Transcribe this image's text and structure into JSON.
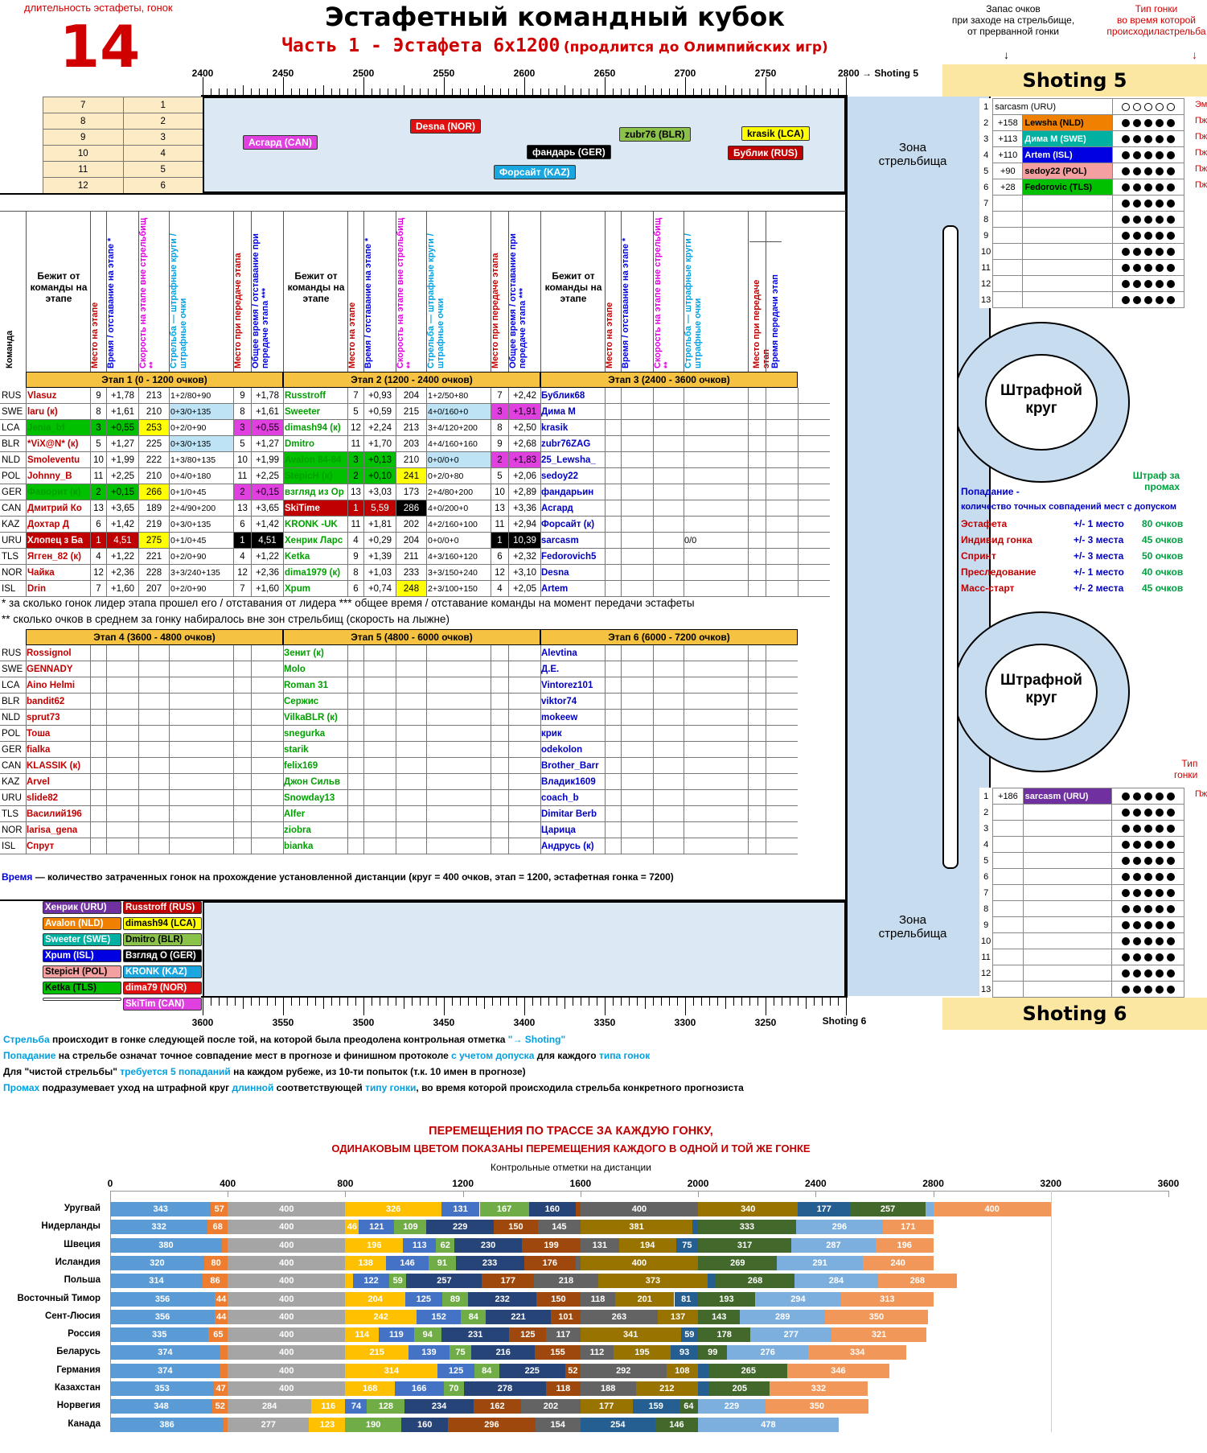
{
  "header": {
    "duration_label": "длительность эстафеты, гонок",
    "duration_value": "14",
    "title": "Эстафетный командный кубок",
    "subtitle": "Часть 1 - Эстафета 6х1200",
    "subtitle_note": "(продлится до Олимпийских игр)",
    "reserve_label": "Запас очков\nпри заходе на стрельбище,\nот прерванной гонки",
    "race_type_label": "Тип гонки\nво время которой\nпроисходиластрельба",
    "arrow": "↓"
  },
  "scale_top": {
    "ticks": [
      "2400",
      "2450",
      "2500",
      "2550",
      "2600",
      "2650",
      "2700",
      "2750",
      "2800 → Shoting 5"
    ],
    "shooting_label": "Shoting 5",
    "zone_label": "Зона\nстрельбища"
  },
  "scale_bottom": {
    "ticks": [
      "3600",
      "3550",
      "3500",
      "3450",
      "3400",
      "3350",
      "3300",
      "3250",
      "Shoting 6"
    ],
    "shooting_label": "Shoting 6",
    "zone_label": "Зона\nстрельбища"
  },
  "side_scale": [
    "Shoting 5",
    "2850",
    "2900",
    "2950",
    "3000",
    "3050",
    "3100",
    "3150",
    "3200 → Shoting 6"
  ],
  "race_counter": {
    "left": [
      "7",
      "8",
      "9",
      "10",
      "11",
      "12",
      "13"
    ],
    "right": [
      "1",
      "2",
      "3",
      "4",
      "5",
      "6",
      ""
    ]
  },
  "track_top_tags": [
    {
      "text": "Асгард (CAN)",
      "bg": "#e040e0",
      "fg": "#ffffff"
    },
    {
      "text": "Desna (NOR)",
      "bg": "#e01010",
      "fg": "#ffffff"
    },
    {
      "text": "фандарь (GER)",
      "bg": "#000000",
      "fg": "#ffffff"
    },
    {
      "text": "Форсайт (KAZ)",
      "bg": "#1aa7e0",
      "fg": "#ffffff"
    },
    {
      "text": "zubr76 (BLR)",
      "bg": "#8bc34a",
      "fg": "#000000"
    },
    {
      "text": "krasik (LCA)",
      "bg": "#ffff00",
      "fg": "#000000"
    },
    {
      "text": "Бублик (RUS)",
      "bg": "#c00000",
      "fg": "#ffffff"
    }
  ],
  "track_bottom_tags": [
    {
      "text": "Хенрик (URU)",
      "bg": "#7030a0",
      "fg": "#ffffff"
    },
    {
      "text": "Russtroff (RUS)",
      "bg": "#c00000",
      "fg": "#ffffff"
    },
    {
      "text": "Avalon (NLD)",
      "bg": "#f08000",
      "fg": "#ffffff"
    },
    {
      "text": "dimash94 (LCA)",
      "bg": "#ffff00",
      "fg": "#000000"
    },
    {
      "text": "Sweeter (SWE)",
      "bg": "#00b0a0",
      "fg": "#ffffff"
    },
    {
      "text": "Dmitro (BLR)",
      "bg": "#8bc34a",
      "fg": "#000000"
    },
    {
      "text": "Хрum (ISL)",
      "bg": "#0000e0",
      "fg": "#ffffff"
    },
    {
      "text": "Взгляд О (GER)",
      "bg": "#000000",
      "fg": "#ffffff"
    },
    {
      "text": "StepicH (POL)",
      "bg": "#f4a0a0",
      "fg": "#000000"
    },
    {
      "text": "KRONK (KAZ)",
      "bg": "#1aa7e0",
      "fg": "#ffffff"
    },
    {
      "text": "Ketka (TLS)",
      "bg": "#00c000",
      "fg": "#000000"
    },
    {
      "text": "dima79 (NOR)",
      "bg": "#e01010",
      "fg": "#ffffff"
    },
    {
      "text": "",
      "bg": "#ffffff",
      "fg": "#000000"
    },
    {
      "text": "SkiTim (CAN)",
      "bg": "#e040e0",
      "fg": "#ffffff"
    }
  ],
  "table_headers": {
    "team": "Команда",
    "runner": "Бежит от команды на этапе",
    "place": "Место на этапе",
    "time": "Время / отставание на этапе *",
    "speed": "Скорость на этапе вне стрельбищ **",
    "shooting": "Стрельба — штрафные круги / штрафные очки",
    "place_handover": "Место при передаче этапа",
    "total_time": "Общее время / отставание при передаче этапа ***",
    "place_handover2": "Место при передаче этап",
    "time2": "Время передачи этап"
  },
  "stages_top": [
    "Этап 1  (0 - 1200 очков)",
    "Этап 2  (1200 - 2400 очков)",
    "Этап 3  (2400 - 3600 очков)"
  ],
  "stages_bottom": [
    "Этап 4  (3600 - 4800 очков)",
    "Этап 5  (4800 - 6000 очков)",
    "Этап 6  (6000 - 7200 очков)"
  ],
  "countries": [
    "RUS",
    "SWE",
    "LCA",
    "BLR",
    "NLD",
    "POL",
    "GER",
    "CAN",
    "KAZ",
    "URU",
    "TLS",
    "NOR",
    "ISL"
  ],
  "stage1": [
    [
      "Vlasuz",
      "9",
      "+1,78",
      "213",
      "1+2/80+90",
      "9",
      "+1,78"
    ],
    [
      "laru (к)",
      "8",
      "+1,61",
      "210",
      "0+3/0+135",
      "8",
      "+1,61"
    ],
    [
      "Jenia_bf",
      "3",
      "+0,55",
      "253",
      "0+2/0+90",
      "3",
      "+0,55"
    ],
    [
      "*ViX@N* (к)",
      "5",
      "+1,27",
      "225",
      "0+3/0+135",
      "5",
      "+1,27"
    ],
    [
      "Smoleventu",
      "10",
      "+1,99",
      "222",
      "1+3/80+135",
      "10",
      "+1,99"
    ],
    [
      "Johnny_B",
      "11",
      "+2,25",
      "210",
      "0+4/0+180",
      "11",
      "+2,25"
    ],
    [
      "Фаворит (к)",
      "2",
      "+0,15",
      "266",
      "0+1/0+45",
      "2",
      "+0,15"
    ],
    [
      "Дмитрий Ко",
      "13",
      "+3,65",
      "189",
      "2+4/90+200",
      "13",
      "+3,65"
    ],
    [
      "Дохтар Д",
      "6",
      "+1,42",
      "219",
      "0+3/0+135",
      "6",
      "+1,42"
    ],
    [
      "Хлопец з Ба",
      "1",
      "4,51",
      "275",
      "0+1/0+45",
      "1",
      "4,51"
    ],
    [
      "Ягген_82 (к)",
      "4",
      "+1,22",
      "221",
      "0+2/0+90",
      "4",
      "+1,22"
    ],
    [
      "Чайка",
      "12",
      "+2,36",
      "228",
      "3+3/240+135",
      "12",
      "+2,36"
    ],
    [
      "Drin",
      "7",
      "+1,60",
      "207",
      "0+2/0+90",
      "7",
      "+1,60"
    ]
  ],
  "stage2": [
    [
      "Russtroff",
      "7",
      "+0,93",
      "204",
      "1+2/50+80",
      "7",
      "+2,42"
    ],
    [
      "Sweeter",
      "5",
      "+0,59",
      "215",
      "4+0/160+0",
      "3",
      "+1,91"
    ],
    [
      "dimash94 (к)",
      "12",
      "+2,24",
      "213",
      "3+4/120+200",
      "8",
      "+2,50"
    ],
    [
      "Dmitro",
      "11",
      "+1,70",
      "203",
      "4+4/160+160",
      "9",
      "+2,68"
    ],
    [
      "Avalon 84-84",
      "3",
      "+0,13",
      "210",
      "0+0/0+0",
      "2",
      "+1,83"
    ],
    [
      "StepicH (к)",
      "2",
      "+0,10",
      "241",
      "0+2/0+80",
      "5",
      "+2,06"
    ],
    [
      "взгляд из Ор",
      "13",
      "+3,03",
      "173",
      "2+4/80+200",
      "10",
      "+2,89"
    ],
    [
      "SkiTime",
      "1",
      "5,59",
      "286",
      "4+0/200+0",
      "13",
      "+3,36"
    ],
    [
      "KRONK -UK",
      "11",
      "+1,81",
      "202",
      "4+2/160+100",
      "11",
      "+2,94"
    ],
    [
      "Хенрик Ларс",
      "4",
      "+0,29",
      "204",
      "0+0/0+0",
      "1",
      "10,39"
    ],
    [
      "Ketka",
      "9",
      "+1,39",
      "211",
      "4+3/160+120",
      "6",
      "+2,32"
    ],
    [
      "dima1979 (к)",
      "8",
      "+1,03",
      "233",
      "3+3/150+240",
      "12",
      "+3,10"
    ],
    [
      "Xpum",
      "6",
      "+0,74",
      "248",
      "2+3/100+150",
      "4",
      "+2,05"
    ]
  ],
  "stage3": [
    "Бублик68",
    "Дима М",
    "krasik",
    "zubr76ZAG",
    "25_Lewsha_",
    "sedoy22",
    "фандарьин",
    "Асгард",
    "Форсайт (к)",
    "sarcasm",
    "Fedorovich5",
    "Desna",
    "Artem"
  ],
  "stage3_extra": {
    "row": 9,
    "shooting": "0/0"
  },
  "stage4": [
    "Rossignol",
    "GENNADY",
    "Aino Helmi",
    "bandit62",
    "sprut73",
    "Тоша",
    "fialka",
    "KLASSIK (к)",
    "Arvel",
    "slide82",
    "Василий196",
    "larisa_gena",
    "Спрут"
  ],
  "stage5": [
    "Зенит (к)",
    "Molo",
    "Roman 31",
    "Сержис",
    "VilkaBLR (к)",
    "snegurka",
    "starik",
    "felix169",
    "Джон Сильв",
    "Snowday13",
    "Alfer",
    "ziobra",
    "bianka"
  ],
  "stage6": [
    "Alevtina",
    "Д.Е.",
    "Vintorez101",
    "viktor74",
    "mokeew",
    "крик",
    "odekolon",
    "Brother_Barr",
    "Владик1609",
    "coach_b",
    "Dimitar Berb",
    "Царица",
    "Андрусь (к)"
  ],
  "footnotes": [
    "* за сколько гонок лидер этапа прошел его / отставания от лидера *** общее время / отставание команды на момент передачи эстафеты",
    "** сколько очков в среднем за гонку набиралось вне зон стрельбищ (скорость на лыжне)"
  ],
  "time_note_label": "Время",
  "time_note": " — количество затраченных гонок на прохождение установленной дистанции (круг = 400 очков, этап = 1200, эстафетная гонка = 7200)",
  "shooting5": {
    "title": "Shoting 5",
    "rows": [
      {
        "n": "1",
        "pts": "sarcasm (URU)",
        "name": "",
        "bg": "#ffffff",
        "fg": "#000000",
        "dots": "empty",
        "type": "Эм"
      },
      {
        "n": "2",
        "pts": "+158",
        "name": "Lewsha (NLD)",
        "bg": "#f08000",
        "fg": "#000000",
        "dots": "full",
        "type": "Пж"
      },
      {
        "n": "3",
        "pts": "+113",
        "name": "Дима М (SWE)",
        "bg": "#00b0a0",
        "fg": "#ffffff",
        "dots": "full",
        "type": "Пж"
      },
      {
        "n": "4",
        "pts": "+110",
        "name": "Artem (ISL)",
        "bg": "#0000e0",
        "fg": "#ffffff",
        "dots": "full",
        "type": "Пж"
      },
      {
        "n": "5",
        "pts": "+90",
        "name": "sedoy22 (POL)",
        "bg": "#f4a0a0",
        "fg": "#000000",
        "dots": "full",
        "type": "Пж"
      },
      {
        "n": "6",
        "pts": "+28",
        "name": "Fedorovic (TLS)",
        "bg": "#00c000",
        "fg": "#000000",
        "dots": "full",
        "type": "Пж"
      },
      {
        "n": "7",
        "pts": "",
        "name": "",
        "bg": "#ffffff",
        "fg": "#000000",
        "dots": "full",
        "type": ""
      },
      {
        "n": "8",
        "pts": "",
        "name": "",
        "bg": "#ffffff",
        "fg": "#000000",
        "dots": "full",
        "type": ""
      },
      {
        "n": "9",
        "pts": "",
        "name": "",
        "bg": "#ffffff",
        "fg": "#000000",
        "dots": "full",
        "type": ""
      },
      {
        "n": "10",
        "pts": "",
        "name": "",
        "bg": "#ffffff",
        "fg": "#000000",
        "dots": "full",
        "type": ""
      },
      {
        "n": "11",
        "pts": "",
        "name": "",
        "bg": "#ffffff",
        "fg": "#000000",
        "dots": "full",
        "type": ""
      },
      {
        "n": "12",
        "pts": "",
        "name": "",
        "bg": "#ffffff",
        "fg": "#000000",
        "dots": "full",
        "type": ""
      },
      {
        "n": "13",
        "pts": "",
        "name": "",
        "bg": "#ffffff",
        "fg": "#000000",
        "dots": "full",
        "type": ""
      }
    ]
  },
  "shooting6": {
    "title": "Shoting 6",
    "type_label": "Тип\nгонки",
    "rows": [
      {
        "n": "1",
        "pts": "+186",
        "name": "sarcasm (URU)",
        "bg": "#7030a0",
        "fg": "#ffffff",
        "type": "Пж"
      },
      {
        "n": "2",
        "pts": "",
        "name": "",
        "bg": "#ffffff",
        "fg": "#000000",
        "type": ""
      },
      {
        "n": "3",
        "pts": "",
        "name": "",
        "bg": "#ffffff",
        "fg": "#000000",
        "type": ""
      },
      {
        "n": "4",
        "pts": "",
        "name": "",
        "bg": "#ffffff",
        "fg": "#000000",
        "type": ""
      },
      {
        "n": "5",
        "pts": "",
        "name": "",
        "bg": "#ffffff",
        "fg": "#000000",
        "type": ""
      },
      {
        "n": "6",
        "pts": "",
        "name": "",
        "bg": "#ffffff",
        "fg": "#000000",
        "type": ""
      },
      {
        "n": "7",
        "pts": "",
        "name": "",
        "bg": "#ffffff",
        "fg": "#000000",
        "type": ""
      },
      {
        "n": "8",
        "pts": "",
        "name": "",
        "bg": "#ffffff",
        "fg": "#000000",
        "type": ""
      },
      {
        "n": "9",
        "pts": "",
        "name": "",
        "bg": "#ffffff",
        "fg": "#000000",
        "type": ""
      },
      {
        "n": "10",
        "pts": "",
        "name": "",
        "bg": "#ffffff",
        "fg": "#000000",
        "type": ""
      },
      {
        "n": "11",
        "pts": "",
        "name": "",
        "bg": "#ffffff",
        "fg": "#000000",
        "type": ""
      },
      {
        "n": "12",
        "pts": "",
        "name": "",
        "bg": "#ffffff",
        "fg": "#000000",
        "type": ""
      },
      {
        "n": "13",
        "pts": "",
        "name": "",
        "bg": "#ffffff",
        "fg": "#000000",
        "type": ""
      }
    ]
  },
  "penalty_label": "Штрафной\nкруг",
  "hit_legend": {
    "title": "Попадание -",
    "subtitle": "количество точных совпадений мест с допуском",
    "penalty_title": "Штраф за\nпромах",
    "rows": [
      [
        "Эстафета",
        "+/- 1 место",
        "80 очков"
      ],
      [
        "Индивид гонка",
        "+/- 3 места",
        "45 очков"
      ],
      [
        "Спринт",
        "+/- 3 места",
        "50 очков"
      ],
      [
        "Преследование",
        "+/- 1 место",
        "40 очков"
      ],
      [
        "Масс-старт",
        "+/- 2 места",
        "45 очков"
      ]
    ]
  },
  "rules": [
    [
      [
        "Стрельба",
        "#00a0e0"
      ],
      [
        " происходит в гонке следующей после той, на которой была преодолена контрольная отметка ",
        "#000000"
      ],
      [
        "\"→ Shoting\"",
        "#00a0e0"
      ]
    ],
    [
      [
        "Попадание",
        "#00a0e0"
      ],
      [
        " на стрельбе означат точное совпадение мест в прогнозе и финишном протоколе ",
        "#000000"
      ],
      [
        "с учетом допуска",
        "#00a0e0"
      ],
      [
        " для каждого ",
        "#000000"
      ],
      [
        "типа гонок",
        "#00a0e0"
      ]
    ],
    [
      [
        "Для \"чистой стрельбы\" ",
        "#000000"
      ],
      [
        "требуется 5 попаданий",
        "#00a0e0"
      ],
      [
        " на каждом рубеже, из 10-ти попыток (т.к. 10 имен в прогнозе)",
        "#000000"
      ]
    ],
    [
      [
        "Промах",
        "#00a0e0"
      ],
      [
        " подразумевает уход на штрафной круг ",
        "#000000"
      ],
      [
        "длинной",
        "#00a0e0"
      ],
      [
        " соответствующей ",
        "#000000"
      ],
      [
        "типу гонки",
        "#00a0e0"
      ],
      [
        ", во время которой происходила стрельба конкретного прогнозиста",
        "#000000"
      ]
    ]
  ],
  "chart_data": {
    "type": "bar",
    "stacked": true,
    "orientation": "horizontal",
    "title": "ПЕРЕМЕЩЕНИЯ ПО ТРАССЕ ЗА КАЖДУЮ ГОНКУ,",
    "subtitle": "ОДИНАКОВЫМ ЦВЕТОМ ПОКАЗАНЫ ПЕРЕМЕЩЕНИЯ КАЖДОГО В ОДНОЙ И ТОЙ ЖЕ ГОНКЕ",
    "xlabel": "Контрольные отметки на дистанции",
    "xlim": [
      0,
      3600
    ],
    "xticks": [
      "0",
      "400",
      "800",
      "1200",
      "1600",
      "2000",
      "2400",
      "2800",
      "3200",
      "3600"
    ],
    "segment_colors": [
      "#5b9bd5",
      "#ed7d31",
      "#a5a5a5",
      "#ffc000",
      "#4472c4",
      "#70ad47",
      "#264478",
      "#9e480e",
      "#636363",
      "#997300",
      "#255e91",
      "#43682b",
      "#7cafdd",
      "#f1975a"
    ],
    "categories": [
      "Уругвай",
      "Нидерланды",
      "Швеция",
      "Исландия",
      "Польша",
      "Восточный Тимор",
      "Сент-Люсия",
      "Россия",
      "Беларусь",
      "Германия",
      "Казахстан",
      "Норвегия",
      "Канада"
    ],
    "rows": [
      [
        343,
        57,
        400,
        326,
        131,
        167,
        160,
        16,
        400,
        340,
        177,
        257,
        26,
        400
      ],
      [
        332,
        68,
        400,
        46,
        121,
        109,
        229,
        150,
        145,
        381,
        19,
        333,
        296,
        171
      ],
      [
        380,
        20,
        400,
        196,
        113,
        62,
        230,
        199,
        131,
        194,
        75,
        317,
        287,
        196
      ],
      [
        320,
        80,
        400,
        138,
        146,
        91,
        233,
        176,
        16,
        400,
        0,
        269,
        291,
        240
      ],
      [
        314,
        86,
        400,
        27,
        122,
        59,
        257,
        177,
        218,
        373,
        27,
        268,
        284,
        268
      ],
      [
        356,
        44,
        400,
        204,
        125,
        89,
        232,
        150,
        118,
        201,
        81,
        193,
        294,
        313
      ],
      [
        356,
        44,
        400,
        242,
        152,
        84,
        221,
        101,
        263,
        137,
        0,
        143,
        289,
        350
      ],
      [
        335,
        65,
        400,
        114,
        119,
        94,
        231,
        125,
        117,
        341,
        59,
        178,
        277,
        321
      ],
      [
        374,
        26,
        400,
        215,
        139,
        75,
        216,
        155,
        112,
        195,
        93,
        99,
        276,
        334
      ],
      [
        374,
        26,
        400,
        314,
        125,
        84,
        225,
        52,
        292,
        108,
        39,
        265,
        0,
        346
      ],
      [
        353,
        47,
        400,
        168,
        166,
        70,
        278,
        118,
        188,
        212,
        39,
        205,
        0,
        332
      ],
      [
        348,
        52,
        284,
        116,
        74,
        128,
        234,
        162,
        202,
        177,
        159,
        64,
        229,
        350
      ],
      [
        386,
        14,
        277,
        123,
        0,
        190,
        160,
        296,
        154,
        0,
        254,
        146,
        478,
        0
      ]
    ]
  }
}
